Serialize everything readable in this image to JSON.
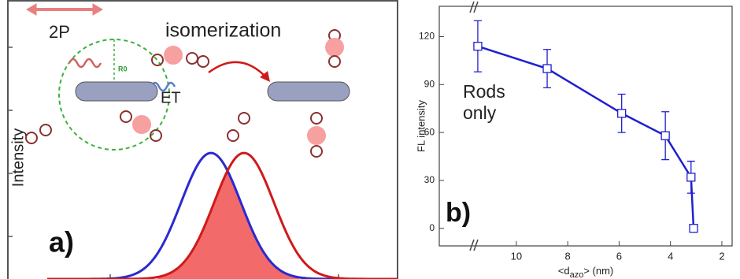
{
  "panel_a": {
    "ylabel": "Intensity",
    "label_2p": "2P",
    "label_isomerization": "isomerization",
    "label_et": "ET",
    "label_r0": "R0",
    "panel_label": "a)"
  },
  "chart_data": {
    "type": "line",
    "panel_label": "b)",
    "ylabel": "FL intensity",
    "xlabel": {
      "main": "<d",
      "sub": "azo",
      "end": "> (nm)"
    },
    "annotation": [
      "Rods",
      "only"
    ],
    "x": [
      11.5,
      8.8,
      5.9,
      4.2,
      3.2,
      3.1
    ],
    "series": [
      {
        "color": "#1f1fd0",
        "values": [
          114,
          100,
          72,
          58,
          32,
          0
        ],
        "errors": [
          16,
          12,
          12,
          15,
          10,
          0
        ]
      }
    ],
    "xlim": [
      13,
      1.6
    ],
    "xticks": [
      10,
      8,
      6,
      4,
      2
    ],
    "ylim": [
      -11,
      139
    ],
    "yticks": [
      0,
      30,
      60,
      90,
      120
    ]
  }
}
